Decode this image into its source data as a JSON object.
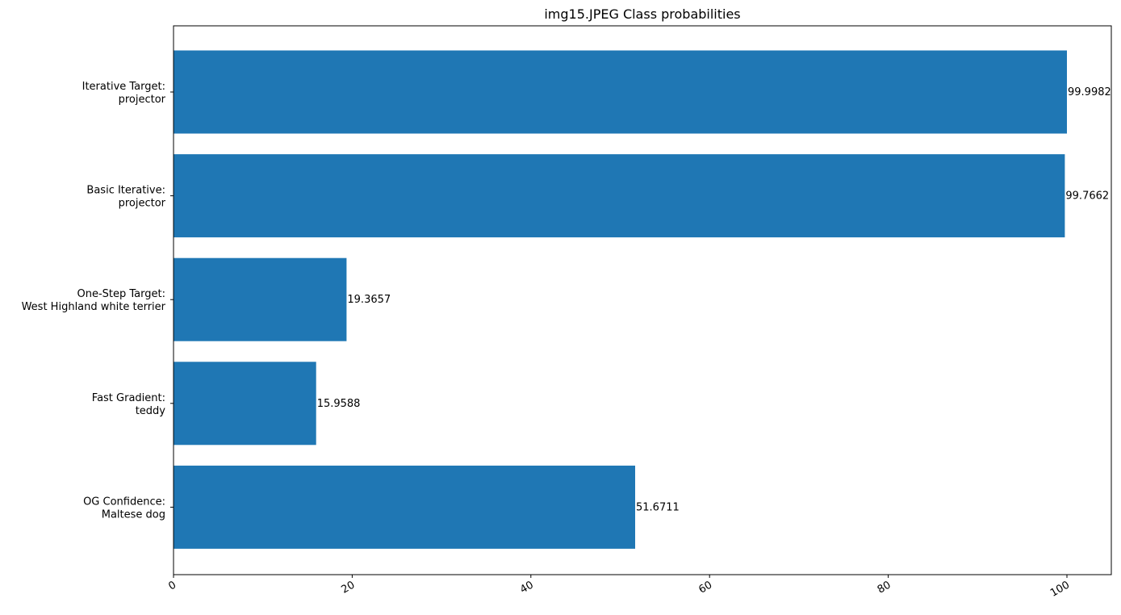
{
  "chart_data": {
    "type": "bar",
    "orientation": "horizontal",
    "title": "img15.JPEG Class probabilities",
    "xlabel": "",
    "ylabel": "",
    "xlim": [
      0,
      105
    ],
    "x_ticks": [
      0,
      20,
      40,
      60,
      80,
      100
    ],
    "x_tick_labels": [
      "0",
      "20",
      "40",
      "60",
      "80",
      "100"
    ],
    "grid": false,
    "legend": "none",
    "bar_color": "#1f77b4",
    "categories": [
      [
        "Iterative Target:",
        " projector"
      ],
      [
        "Basic Iterative:",
        " projector"
      ],
      [
        "One-Step Target:",
        " West Highland white terrier"
      ],
      [
        "Fast Gradient:",
        " teddy"
      ],
      [
        "OG Confidence:",
        " Maltese dog"
      ]
    ],
    "values": [
      99.9982,
      99.7662,
      19.3657,
      15.9588,
      51.6711
    ],
    "value_labels": [
      "99.9982",
      "99.7662",
      "19.3657",
      "15.9588",
      "51.6711"
    ]
  }
}
